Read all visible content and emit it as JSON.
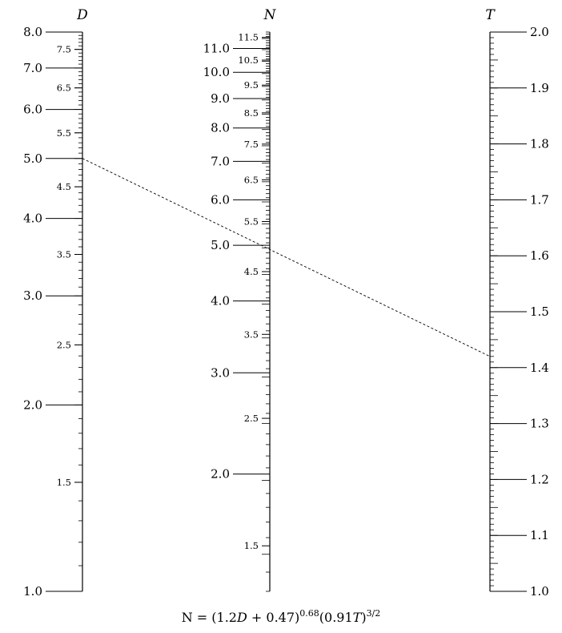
{
  "nomogram": {
    "formula": "N = (1.2D + 0.47)^0.68 (0.91T)^3/2",
    "formula_parts": {
      "lhs": "N = (1.2",
      "d": "D",
      "mid": " + 0.47)",
      "exp1": "0.68",
      "mid2": "(0.91",
      "t": "T",
      "close": ")",
      "exp2": "3/2"
    },
    "scales": [
      {
        "id": "D",
        "label": "D",
        "range": [
          1.0,
          8.0
        ],
        "major_labels": [
          "1.0",
          "1.5",
          "2.0",
          "2.5",
          "3.0",
          "3.5",
          "4.0",
          "4.5",
          "5.0",
          "5.5",
          "6.0",
          "6.5",
          "7.0",
          "7.5",
          "8.0"
        ],
        "major_values": [
          1.0,
          1.5,
          2.0,
          2.5,
          3.0,
          3.5,
          4.0,
          4.5,
          5.0,
          5.5,
          6.0,
          6.5,
          7.0,
          7.5,
          8.0
        ]
      },
      {
        "id": "N",
        "label": "N",
        "range": [
          1.25,
          11.75
        ],
        "major_labels": [
          "1.5",
          "2.0",
          "2.5",
          "3.0",
          "3.5",
          "4.0",
          "4.5",
          "5.0",
          "5.5",
          "6.0",
          "6.5",
          "7.0",
          "7.5",
          "8.0",
          "8.5",
          "9.0",
          "9.5",
          "10.0",
          "10.5",
          "11.0",
          "11.5"
        ],
        "major_values": [
          1.5,
          2.0,
          2.5,
          3.0,
          3.5,
          4.0,
          4.5,
          5.0,
          5.5,
          6.0,
          6.5,
          7.0,
          7.5,
          8.0,
          8.5,
          9.0,
          9.5,
          10.0,
          10.5,
          11.0,
          11.5
        ]
      },
      {
        "id": "T",
        "label": "T",
        "range": [
          1.0,
          2.0
        ],
        "major_labels": [
          "1.0",
          "1.1",
          "1.2",
          "1.3",
          "1.4",
          "1.5",
          "1.6",
          "1.7",
          "1.8",
          "1.9",
          "2.0"
        ],
        "major_values": [
          1.0,
          1.1,
          1.2,
          1.3,
          1.4,
          1.5,
          1.6,
          1.7,
          1.8,
          1.9,
          2.0
        ]
      }
    ],
    "isopleth": {
      "D": 5.0,
      "T": 1.42
    },
    "colors": {
      "ink": "#000000",
      "background": "#ffffff"
    }
  }
}
